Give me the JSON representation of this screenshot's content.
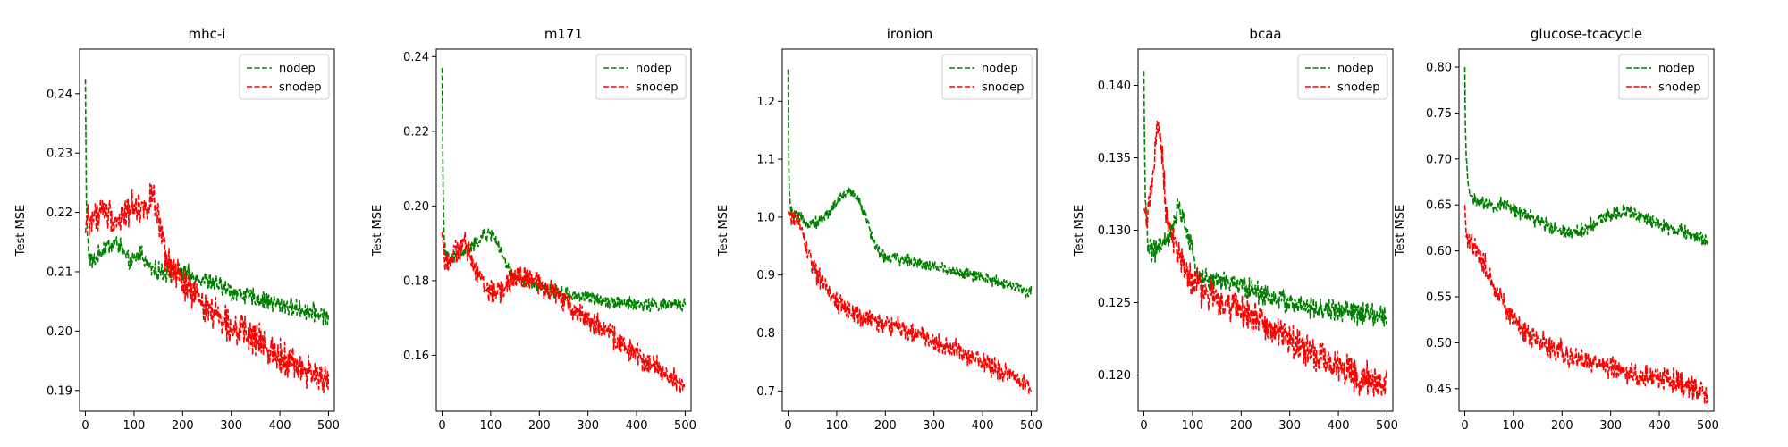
{
  "chart_data": [
    {
      "type": "line",
      "title": "mhc-i",
      "xlabel": "",
      "ylabel": "Test MSE",
      "xlim": [
        -12,
        512
      ],
      "ylim": [
        0.1865,
        0.2475
      ],
      "xticks": [
        0,
        100,
        200,
        300,
        400,
        500
      ],
      "yticks": [
        0.19,
        0.2,
        0.21,
        0.22,
        0.23,
        0.24
      ],
      "ytick_labels": [
        "0.19",
        "0.20",
        "0.21",
        "0.22",
        "0.23",
        "0.24"
      ],
      "legend": "top-right",
      "series": [
        {
          "name": "nodep",
          "color": "#008000",
          "noise": 0.0012,
          "anchors": [
            [
              0,
              0.2425
            ],
            [
              1,
              0.232
            ],
            [
              2,
              0.222
            ],
            [
              4,
              0.216
            ],
            [
              8,
              0.2125
            ],
            [
              15,
              0.2115
            ],
            [
              25,
              0.2125
            ],
            [
              35,
              0.2138
            ],
            [
              50,
              0.2145
            ],
            [
              65,
              0.2148
            ],
            [
              75,
              0.214
            ],
            [
              85,
              0.212
            ],
            [
              95,
              0.2115
            ],
            [
              105,
              0.2125
            ],
            [
              115,
              0.2135
            ],
            [
              125,
              0.2115
            ],
            [
              140,
              0.2102
            ],
            [
              160,
              0.21
            ],
            [
              200,
              0.2098
            ],
            [
              250,
              0.2085
            ],
            [
              300,
              0.2068
            ],
            [
              350,
              0.2055
            ],
            [
              400,
              0.2045
            ],
            [
              450,
              0.2035
            ],
            [
              480,
              0.203
            ],
            [
              500,
              0.2025
            ]
          ]
        },
        {
          "name": "snodep",
          "color": "#ff0000",
          "noise": 0.0022,
          "anchors": [
            [
              0,
              0.2165
            ],
            [
              3,
              0.2195
            ],
            [
              10,
              0.2185
            ],
            [
              20,
              0.2195
            ],
            [
              35,
              0.2205
            ],
            [
              50,
              0.2195
            ],
            [
              65,
              0.2185
            ],
            [
              80,
              0.2195
            ],
            [
              100,
              0.2215
            ],
            [
              120,
              0.2205
            ],
            [
              135,
              0.2225
            ],
            [
              145,
              0.221
            ],
            [
              160,
              0.214
            ],
            [
              170,
              0.211
            ],
            [
              185,
              0.21
            ],
            [
              200,
              0.208
            ],
            [
              230,
              0.2055
            ],
            [
              260,
              0.2035
            ],
            [
              300,
              0.201
            ],
            [
              350,
              0.1985
            ],
            [
              400,
              0.196
            ],
            [
              450,
              0.1935
            ],
            [
              480,
              0.192
            ],
            [
              500,
              0.1915
            ]
          ]
        }
      ]
    },
    {
      "type": "line",
      "title": "m171",
      "xlabel": "",
      "ylabel": "Test MSE",
      "xlim": [
        -12,
        512
      ],
      "ylim": [
        0.145,
        0.242
      ],
      "xticks": [
        0,
        100,
        200,
        300,
        400,
        500
      ],
      "yticks": [
        0.16,
        0.18,
        0.2,
        0.22,
        0.24
      ],
      "ytick_labels": [
        "0.16",
        "0.18",
        "0.20",
        "0.22",
        "0.24"
      ],
      "legend": "top-right",
      "series": [
        {
          "name": "nodep",
          "color": "#008000",
          "noise": 0.0014,
          "anchors": [
            [
              0,
              0.237
            ],
            [
              1,
              0.222
            ],
            [
              2,
              0.205
            ],
            [
              4,
              0.192
            ],
            [
              8,
              0.187
            ],
            [
              15,
              0.1855
            ],
            [
              30,
              0.186
            ],
            [
              50,
              0.188
            ],
            [
              70,
              0.19
            ],
            [
              85,
              0.192
            ],
            [
              100,
              0.1925
            ],
            [
              110,
              0.1915
            ],
            [
              125,
              0.186
            ],
            [
              140,
              0.182
            ],
            [
              160,
              0.18
            ],
            [
              200,
              0.178
            ],
            [
              250,
              0.1765
            ],
            [
              300,
              0.1755
            ],
            [
              350,
              0.1745
            ],
            [
              400,
              0.1735
            ],
            [
              450,
              0.1735
            ],
            [
              500,
              0.1735
            ]
          ]
        },
        {
          "name": "snodep",
          "color": "#ff0000",
          "noise": 0.0025,
          "anchors": [
            [
              0,
              0.193
            ],
            [
              5,
              0.186
            ],
            [
              15,
              0.185
            ],
            [
              30,
              0.188
            ],
            [
              45,
              0.19
            ],
            [
              60,
              0.186
            ],
            [
              75,
              0.182
            ],
            [
              90,
              0.178
            ],
            [
              110,
              0.1765
            ],
            [
              130,
              0.178
            ],
            [
              150,
              0.181
            ],
            [
              170,
              0.181
            ],
            [
              200,
              0.179
            ],
            [
              230,
              0.177
            ],
            [
              260,
              0.1735
            ],
            [
              300,
              0.17
            ],
            [
              350,
              0.165
            ],
            [
              400,
              0.16
            ],
            [
              450,
              0.156
            ],
            [
              480,
              0.153
            ],
            [
              500,
              0.1515
            ]
          ]
        }
      ]
    },
    {
      "type": "line",
      "title": "ironion",
      "xlabel": "",
      "ylabel": "Test MSE",
      "xlim": [
        -12,
        512
      ],
      "ylim": [
        0.665,
        1.29
      ],
      "xticks": [
        0,
        100,
        200,
        300,
        400,
        500
      ],
      "yticks": [
        0.7,
        0.8,
        0.9,
        1.0,
        1.1,
        1.2
      ],
      "ytick_labels": [
        "0.7",
        "0.8",
        "0.9",
        "1.0",
        "1.1",
        "1.2"
      ],
      "legend": "top-right",
      "series": [
        {
          "name": "nodep",
          "color": "#008000",
          "noise": 0.008,
          "anchors": [
            [
              0,
              1.255
            ],
            [
              1,
              1.15
            ],
            [
              2,
              1.06
            ],
            [
              4,
              1.02
            ],
            [
              8,
              1.005
            ],
            [
              20,
              1.0
            ],
            [
              40,
              0.99
            ],
            [
              60,
              0.99
            ],
            [
              80,
              1.005
            ],
            [
              100,
              1.025
            ],
            [
              115,
              1.04
            ],
            [
              130,
              1.045
            ],
            [
              145,
              1.03
            ],
            [
              160,
              1.0
            ],
            [
              175,
              0.96
            ],
            [
              190,
              0.935
            ],
            [
              210,
              0.93
            ],
            [
              250,
              0.925
            ],
            [
              300,
              0.915
            ],
            [
              350,
              0.905
            ],
            [
              400,
              0.895
            ],
            [
              450,
              0.885
            ],
            [
              500,
              0.87
            ]
          ]
        },
        {
          "name": "snodep",
          "color": "#ff0000",
          "noise": 0.014,
          "anchors": [
            [
              0,
              1.01
            ],
            [
              5,
              0.995
            ],
            [
              15,
              1.0
            ],
            [
              25,
              0.985
            ],
            [
              40,
              0.94
            ],
            [
              60,
              0.9
            ],
            [
              80,
              0.875
            ],
            [
              100,
              0.855
            ],
            [
              130,
              0.835
            ],
            [
              160,
              0.825
            ],
            [
              200,
              0.815
            ],
            [
              250,
              0.805
            ],
            [
              300,
              0.785
            ],
            [
              350,
              0.77
            ],
            [
              400,
              0.75
            ],
            [
              450,
              0.73
            ],
            [
              480,
              0.72
            ],
            [
              500,
              0.705
            ]
          ]
        }
      ]
    },
    {
      "type": "line",
      "title": "bcaa",
      "xlabel": "",
      "ylabel": "Test MSE",
      "xlim": [
        -12,
        512
      ],
      "ylim": [
        0.1175,
        0.1425
      ],
      "xticks": [
        0,
        100,
        200,
        300,
        400,
        500
      ],
      "yticks": [
        0.12,
        0.125,
        0.13,
        0.135,
        0.14
      ],
      "ytick_labels": [
        "0.120",
        "0.125",
        "0.130",
        "0.135",
        "0.140"
      ],
      "legend": "top-right",
      "series": [
        {
          "name": "nodep",
          "color": "#008000",
          "noise": 0.0006,
          "anchors": [
            [
              0,
              0.141
            ],
            [
              1,
              0.137
            ],
            [
              3,
              0.132
            ],
            [
              8,
              0.129
            ],
            [
              20,
              0.1285
            ],
            [
              40,
              0.129
            ],
            [
              60,
              0.13
            ],
            [
              70,
              0.1315
            ],
            [
              80,
              0.131
            ],
            [
              95,
              0.129
            ],
            [
              110,
              0.127
            ],
            [
              130,
              0.1265
            ],
            [
              160,
              0.1265
            ],
            [
              200,
              0.1262
            ],
            [
              250,
              0.1255
            ],
            [
              300,
              0.125
            ],
            [
              350,
              0.1245
            ],
            [
              400,
              0.1245
            ],
            [
              450,
              0.1242
            ],
            [
              500,
              0.124
            ]
          ]
        },
        {
          "name": "snodep",
          "color": "#ff0000",
          "noise": 0.0009,
          "anchors": [
            [
              0,
              0.1315
            ],
            [
              5,
              0.131
            ],
            [
              15,
              0.1325
            ],
            [
              25,
              0.136
            ],
            [
              30,
              0.1375
            ],
            [
              38,
              0.135
            ],
            [
              45,
              0.1315
            ],
            [
              60,
              0.1295
            ],
            [
              80,
              0.1275
            ],
            [
              100,
              0.1265
            ],
            [
              130,
              0.1255
            ],
            [
              160,
              0.125
            ],
            [
              200,
              0.1245
            ],
            [
              250,
              0.1235
            ],
            [
              300,
              0.1225
            ],
            [
              350,
              0.1215
            ],
            [
              400,
              0.1205
            ],
            [
              450,
              0.1198
            ],
            [
              500,
              0.1192
            ]
          ]
        }
      ]
    },
    {
      "type": "line",
      "title": "glucose-tcacycle",
      "xlabel": "",
      "ylabel": "Test MSE",
      "xlim": [
        -12,
        512
      ],
      "ylim": [
        0.4255,
        0.8195
      ],
      "xticks": [
        0,
        100,
        200,
        300,
        400,
        500
      ],
      "yticks": [
        0.45,
        0.5,
        0.55,
        0.6,
        0.65,
        0.7,
        0.75,
        0.8
      ],
      "ytick_labels": [
        "0.45",
        "0.50",
        "0.55",
        "0.60",
        "0.65",
        "0.70",
        "0.75",
        "0.80"
      ],
      "legend": "top-right",
      "series": [
        {
          "name": "nodep",
          "color": "#008000",
          "noise": 0.006,
          "anchors": [
            [
              0,
              0.8
            ],
            [
              1,
              0.74
            ],
            [
              3,
              0.7
            ],
            [
              8,
              0.665
            ],
            [
              20,
              0.655
            ],
            [
              40,
              0.65
            ],
            [
              60,
              0.648
            ],
            [
              80,
              0.652
            ],
            [
              100,
              0.645
            ],
            [
              130,
              0.638
            ],
            [
              160,
              0.63
            ],
            [
              200,
              0.622
            ],
            [
              230,
              0.62
            ],
            [
              260,
              0.628
            ],
            [
              300,
              0.64
            ],
            [
              330,
              0.645
            ],
            [
              360,
              0.638
            ],
            [
              400,
              0.628
            ],
            [
              450,
              0.62
            ],
            [
              500,
              0.612
            ]
          ]
        },
        {
          "name": "snodep",
          "color": "#ff0000",
          "noise": 0.01,
          "anchors": [
            [
              0,
              0.65
            ],
            [
              3,
              0.615
            ],
            [
              10,
              0.608
            ],
            [
              25,
              0.6
            ],
            [
              40,
              0.585
            ],
            [
              60,
              0.56
            ],
            [
              80,
              0.54
            ],
            [
              100,
              0.525
            ],
            [
              130,
              0.51
            ],
            [
              160,
              0.5
            ],
            [
              200,
              0.49
            ],
            [
              250,
              0.48
            ],
            [
              300,
              0.472
            ],
            [
              350,
              0.465
            ],
            [
              400,
              0.462
            ],
            [
              450,
              0.455
            ],
            [
              480,
              0.448
            ],
            [
              500,
              0.44
            ]
          ]
        }
      ]
    }
  ]
}
